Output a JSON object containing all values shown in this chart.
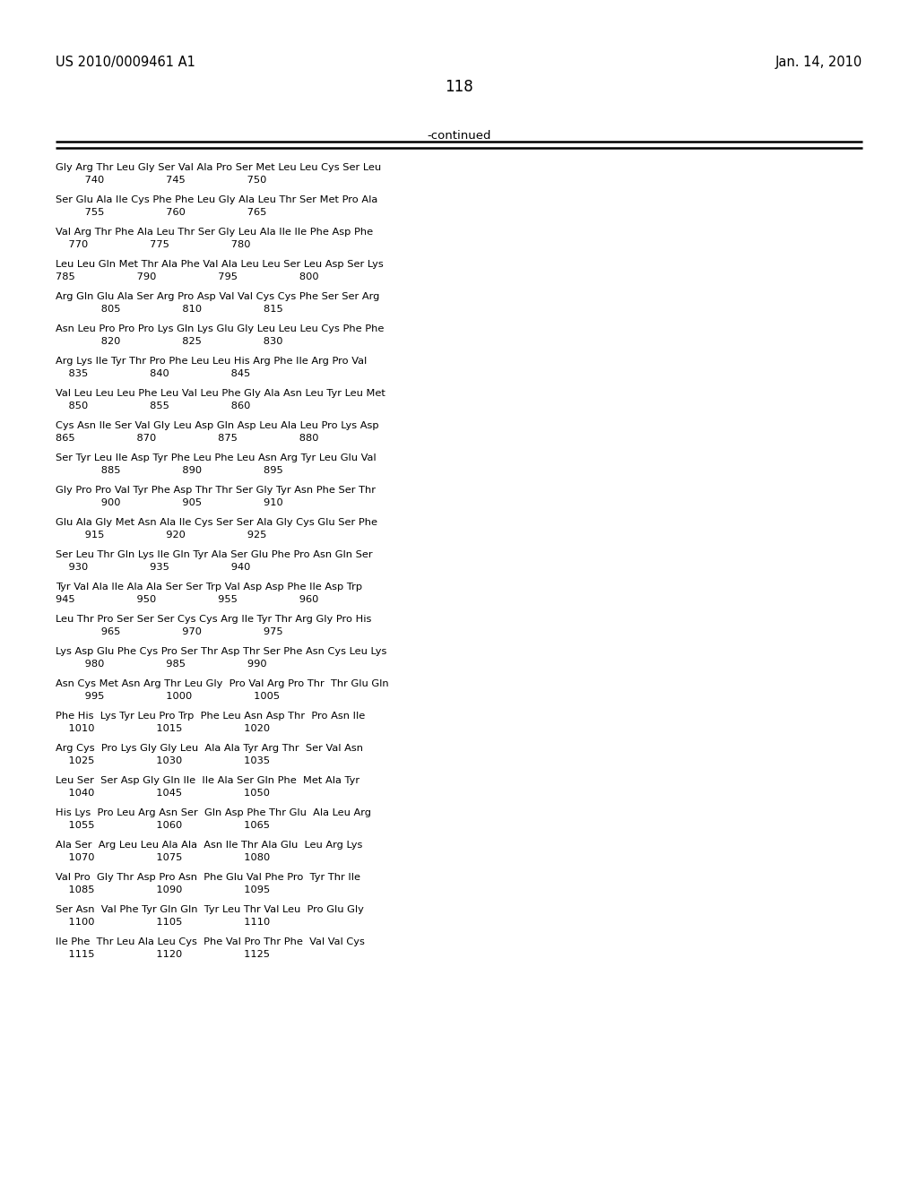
{
  "header_left": "US 2010/0009461 A1",
  "header_right": "Jan. 14, 2010",
  "page_number": "118",
  "continued_label": "-continued",
  "background_color": "#ffffff",
  "text_color": "#000000",
  "sequence_blocks": [
    {
      "seq": "Gly Arg Thr Leu Gly Ser Val Ala Pro Ser Met Leu Leu Cys Ser Leu",
      "num": "         740                   745                   750"
    },
    {
      "seq": "Ser Glu Ala Ile Cys Phe Phe Leu Gly Ala Leu Thr Ser Met Pro Ala",
      "num": "         755                   760                   765"
    },
    {
      "seq": "Val Arg Thr Phe Ala Leu Thr Ser Gly Leu Ala Ile Ile Phe Asp Phe",
      "num": "    770                   775                   780"
    },
    {
      "seq": "Leu Leu Gln Met Thr Ala Phe Val Ala Leu Leu Ser Leu Asp Ser Lys",
      "num": "785                   790                   795                   800"
    },
    {
      "seq": "Arg Gln Glu Ala Ser Arg Pro Asp Val Val Cys Cys Phe Ser Ser Arg",
      "num": "              805                   810                   815"
    },
    {
      "seq": "Asn Leu Pro Pro Pro Lys Gln Lys Glu Gly Leu Leu Leu Cys Phe Phe",
      "num": "              820                   825                   830"
    },
    {
      "seq": "Arg Lys Ile Tyr Thr Pro Phe Leu Leu His Arg Phe Ile Arg Pro Val",
      "num": "    835                   840                   845"
    },
    {
      "seq": "Val Leu Leu Leu Phe Leu Val Leu Phe Gly Ala Asn Leu Tyr Leu Met",
      "num": "    850                   855                   860"
    },
    {
      "seq": "Cys Asn Ile Ser Val Gly Leu Asp Gln Asp Leu Ala Leu Pro Lys Asp",
      "num": "865                   870                   875                   880"
    },
    {
      "seq": "Ser Tyr Leu Ile Asp Tyr Phe Leu Phe Leu Asn Arg Tyr Leu Glu Val",
      "num": "              885                   890                   895"
    },
    {
      "seq": "Gly Pro Pro Val Tyr Phe Asp Thr Thr Ser Gly Tyr Asn Phe Ser Thr",
      "num": "              900                   905                   910"
    },
    {
      "seq": "Glu Ala Gly Met Asn Ala Ile Cys Ser Ser Ala Gly Cys Glu Ser Phe",
      "num": "         915                   920                   925"
    },
    {
      "seq": "Ser Leu Thr Gln Lys Ile Gln Tyr Ala Ser Glu Phe Pro Asn Gln Ser",
      "num": "    930                   935                   940"
    },
    {
      "seq": "Tyr Val Ala Ile Ala Ala Ser Ser Trp Val Asp Asp Phe Ile Asp Trp",
      "num": "945                   950                   955                   960"
    },
    {
      "seq": "Leu Thr Pro Ser Ser Ser Cys Cys Arg Ile Tyr Thr Arg Gly Pro His",
      "num": "              965                   970                   975"
    },
    {
      "seq": "Lys Asp Glu Phe Cys Pro Ser Thr Asp Thr Ser Phe Asn Cys Leu Lys",
      "num": "         980                   985                   990"
    },
    {
      "seq": "Asn Cys Met Asn Arg Thr Leu Gly  Pro Val Arg Pro Thr  Thr Glu Gln",
      "num": "         995                   1000                   1005"
    },
    {
      "seq": "Phe His  Lys Tyr Leu Pro Trp  Phe Leu Asn Asp Thr  Pro Asn Ile",
      "num": "    1010                   1015                   1020"
    },
    {
      "seq": "Arg Cys  Pro Lys Gly Gly Leu  Ala Ala Tyr Arg Thr  Ser Val Asn",
      "num": "    1025                   1030                   1035"
    },
    {
      "seq": "Leu Ser  Ser Asp Gly Gln Ile  Ile Ala Ser Gln Phe  Met Ala Tyr",
      "num": "    1040                   1045                   1050"
    },
    {
      "seq": "His Lys  Pro Leu Arg Asn Ser  Gln Asp Phe Thr Glu  Ala Leu Arg",
      "num": "    1055                   1060                   1065"
    },
    {
      "seq": "Ala Ser  Arg Leu Leu Ala Ala  Asn Ile Thr Ala Glu  Leu Arg Lys",
      "num": "    1070                   1075                   1080"
    },
    {
      "seq": "Val Pro  Gly Thr Asp Pro Asn  Phe Glu Val Phe Pro  Tyr Thr Ile",
      "num": "    1085                   1090                   1095"
    },
    {
      "seq": "Ser Asn  Val Phe Tyr Gln Gln  Tyr Leu Thr Val Leu  Pro Glu Gly",
      "num": "    1100                   1105                   1110"
    },
    {
      "seq": "Ile Phe  Thr Leu Ala Leu Cys  Phe Val Pro Thr Phe  Val Val Cys",
      "num": "    1115                   1120                   1125"
    }
  ]
}
